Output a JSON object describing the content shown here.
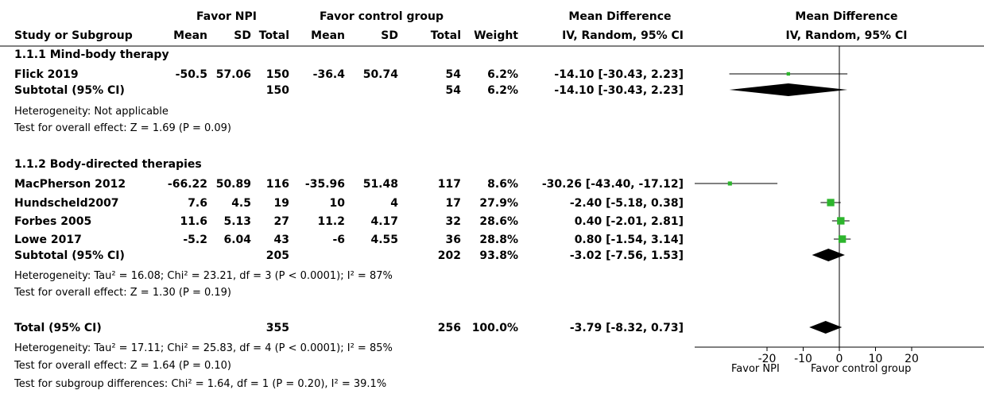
{
  "headers": {
    "favor_npi": "Favor NPI",
    "favor_control": "Favor control group",
    "md_group": "Mean Difference",
    "plot_group": "Mean Difference",
    "study": "Study or Subgroup",
    "mean_e": "Mean",
    "sd_e": "SD",
    "total_e": "Total",
    "mean_c": "Mean",
    "sd_c": "SD",
    "total_c": "Total",
    "weight": "Weight",
    "md_method": "IV, Random, 95% CI",
    "plot_method": "IV, Random, 95% CI"
  },
  "subgroup1": {
    "title": "1.1.1 Mind-body therapy",
    "studies": [
      {
        "name": "Flick 2019",
        "mean_e": "-50.5",
        "sd_e": "57.06",
        "total_e": "150",
        "mean_c": "-36.4",
        "sd_c": "50.74",
        "total_c": "54",
        "weight": "6.2%",
        "ci": "-14.10 [-30.43, 2.23]"
      }
    ],
    "subtotal": {
      "label": "Subtotal (95% CI)",
      "total_e": "150",
      "total_c": "54",
      "weight": "6.2%",
      "ci": "-14.10 [-30.43, 2.23]"
    },
    "heterogeneity": "Heterogeneity: Not applicable",
    "overall": "Test for overall effect: Z = 1.69 (P = 0.09)"
  },
  "subgroup2": {
    "title": "1.1.2 Body-directed therapies",
    "studies": [
      {
        "name": "MacPherson 2012",
        "mean_e": "-66.22",
        "sd_e": "50.89",
        "total_e": "116",
        "mean_c": "-35.96",
        "sd_c": "51.48",
        "total_c": "117",
        "weight": "8.6%",
        "ci": "-30.26 [-43.40, -17.12]"
      },
      {
        "name": "Hundscheld2007",
        "mean_e": "7.6",
        "sd_e": "4.5",
        "total_e": "19",
        "mean_c": "10",
        "sd_c": "4",
        "total_c": "17",
        "weight": "27.9%",
        "ci": "-2.40 [-5.18, 0.38]"
      },
      {
        "name": "Forbes 2005",
        "mean_e": "11.6",
        "sd_e": "5.13",
        "total_e": "27",
        "mean_c": "11.2",
        "sd_c": "4.17",
        "total_c": "32",
        "weight": "28.6%",
        "ci": "0.40 [-2.01, 2.81]"
      },
      {
        "name": "Lowe 2017",
        "mean_e": "-5.2",
        "sd_e": "6.04",
        "total_e": "43",
        "mean_c": "-6",
        "sd_c": "4.55",
        "total_c": "36",
        "weight": "28.8%",
        "ci": "0.80 [-1.54, 3.14]"
      }
    ],
    "subtotal": {
      "label": "Subtotal (95% CI)",
      "total_e": "205",
      "total_c": "202",
      "weight": "93.8%",
      "ci": "-3.02 [-7.56, 1.53]"
    },
    "heterogeneity": "Heterogeneity: Tau² = 16.08; Chi² = 23.21, df = 3 (P < 0.0001); I² = 87%",
    "overall": "Test for overall effect: Z = 1.30 (P = 0.19)"
  },
  "total": {
    "label": "Total (95% CI)",
    "total_e": "355",
    "total_c": "256",
    "weight": "100.0%",
    "ci": "-3.79 [-8.32, 0.73]",
    "heterogeneity": "Heterogeneity: Tau² = 17.11; Chi² = 25.83, df = 4 (P < 0.0001); I² = 85%",
    "overall": "Test for overall effect: Z = 1.64 (P = 0.10)",
    "subgroup_diff": "Test for subgroup differences: Chi² = 1.64, df = 1 (P = 0.20), I² = 39.1%"
  },
  "axis": {
    "ticks": [
      "-20",
      "-10",
      "0",
      "10",
      "20"
    ],
    "left_label": "Favor NPI",
    "right_label": "Favor control group"
  },
  "colors": {
    "study_marker": "#2db52d",
    "diamond": "#000000",
    "ink": "#000000"
  },
  "chart_data": {
    "type": "forest",
    "title": "",
    "xlabel": "",
    "xlim": [
      -20,
      20
    ],
    "x_ticks": [
      -20,
      -10,
      0,
      10,
      20
    ],
    "null_line": 0,
    "studies": [
      {
        "name": "Flick 2019",
        "md": -14.1,
        "lo": -30.43,
        "hi": 2.23,
        "weight": 6.2
      },
      {
        "name": "MacPherson 2012",
        "md": -30.26,
        "lo": -43.4,
        "hi": -17.12,
        "weight": 8.6
      },
      {
        "name": "Hundscheld2007",
        "md": -2.4,
        "lo": -5.18,
        "hi": 0.38,
        "weight": 27.9
      },
      {
        "name": "Forbes 2005",
        "md": 0.4,
        "lo": -2.01,
        "hi": 2.81,
        "weight": 28.6
      },
      {
        "name": "Lowe 2017",
        "md": 0.8,
        "lo": -1.54,
        "hi": 3.14,
        "weight": 28.8
      }
    ],
    "pooled": [
      {
        "name": "Subtotal 1.1.1",
        "md": -14.1,
        "lo": -30.43,
        "hi": 2.23
      },
      {
        "name": "Subtotal 1.1.2",
        "md": -3.02,
        "lo": -7.56,
        "hi": 1.53
      },
      {
        "name": "Total",
        "md": -3.79,
        "lo": -8.32,
        "hi": 0.73
      }
    ]
  }
}
